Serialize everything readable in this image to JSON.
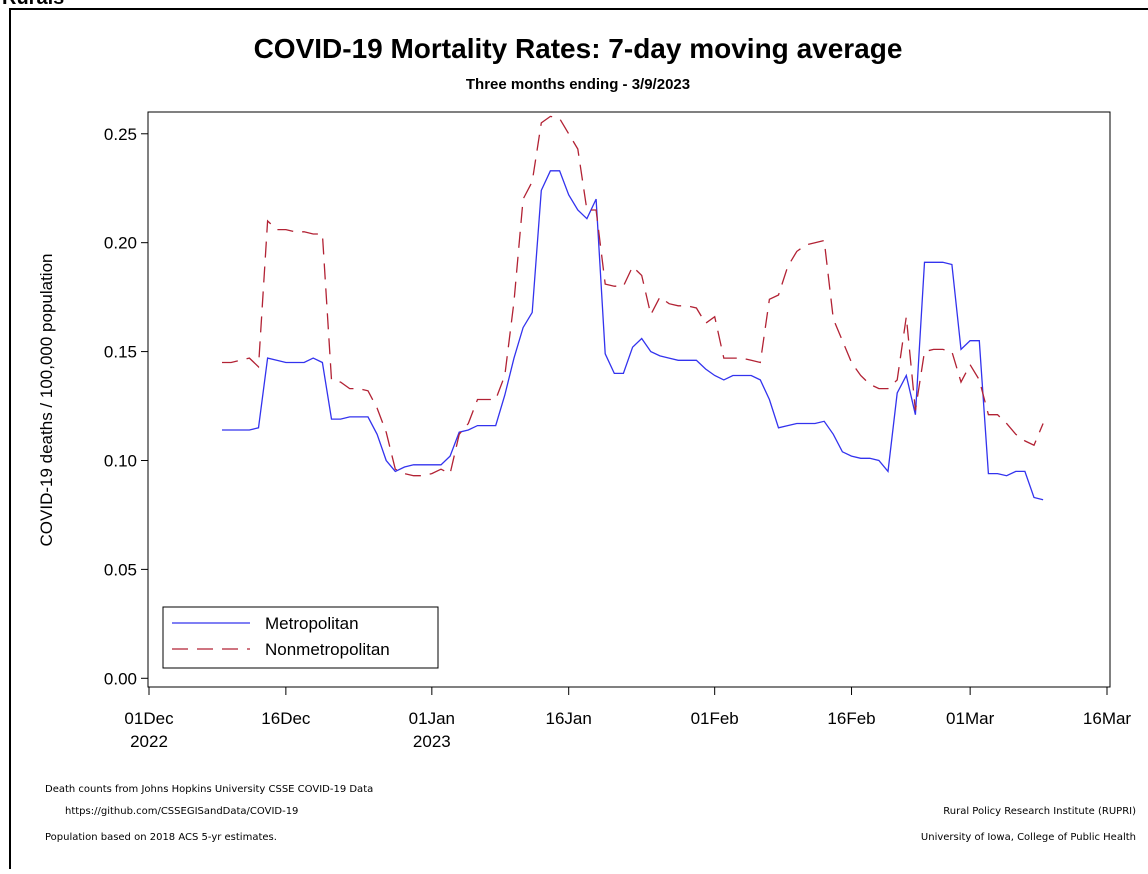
{
  "header": "Rurals",
  "chart_data": {
    "type": "line",
    "title": "COVID-19 Mortality Rates: 7-day moving average",
    "subtitle": "Three months ending - 3/9/2023",
    "ylabel": "COVID-19 deaths / 100,000 population",
    "x": [
      "2022-12-09",
      "2022-12-10",
      "2022-12-11",
      "2022-12-12",
      "2022-12-13",
      "2022-12-14",
      "2022-12-15",
      "2022-12-16",
      "2022-12-17",
      "2022-12-18",
      "2022-12-19",
      "2022-12-20",
      "2022-12-21",
      "2022-12-22",
      "2022-12-23",
      "2022-12-24",
      "2022-12-25",
      "2022-12-26",
      "2022-12-27",
      "2022-12-28",
      "2022-12-29",
      "2022-12-30",
      "2022-12-31",
      "2023-01-01",
      "2023-01-02",
      "2023-01-03",
      "2023-01-04",
      "2023-01-05",
      "2023-01-06",
      "2023-01-07",
      "2023-01-08",
      "2023-01-09",
      "2023-01-10",
      "2023-01-11",
      "2023-01-12",
      "2023-01-13",
      "2023-01-14",
      "2023-01-15",
      "2023-01-16",
      "2023-01-17",
      "2023-01-18",
      "2023-01-19",
      "2023-01-20",
      "2023-01-21",
      "2023-01-22",
      "2023-01-23",
      "2023-01-24",
      "2023-01-25",
      "2023-01-26",
      "2023-01-27",
      "2023-01-28",
      "2023-01-29",
      "2023-01-30",
      "2023-01-31",
      "2023-02-01",
      "2023-02-02",
      "2023-02-03",
      "2023-02-04",
      "2023-02-05",
      "2023-02-06",
      "2023-02-07",
      "2023-02-08",
      "2023-02-09",
      "2023-02-10",
      "2023-02-11",
      "2023-02-12",
      "2023-02-13",
      "2023-02-14",
      "2023-02-15",
      "2023-02-16",
      "2023-02-17",
      "2023-02-18",
      "2023-02-19",
      "2023-02-20",
      "2023-02-21",
      "2023-02-22",
      "2023-02-23",
      "2023-02-24",
      "2023-02-25",
      "2023-02-26",
      "2023-02-27",
      "2023-02-28",
      "2023-03-01",
      "2023-03-02",
      "2023-03-03",
      "2023-03-04",
      "2023-03-05",
      "2023-03-06",
      "2023-03-07",
      "2023-03-08",
      "2023-03-09"
    ],
    "series": [
      {
        "name": "Metropolitan",
        "color": "#3333ee",
        "dash": "solid",
        "values": [
          0.114,
          0.114,
          0.114,
          0.114,
          0.115,
          0.147,
          0.146,
          0.145,
          0.145,
          0.145,
          0.147,
          0.145,
          0.119,
          0.119,
          0.12,
          0.12,
          0.12,
          0.112,
          0.1,
          0.095,
          0.097,
          0.098,
          0.098,
          0.098,
          0.098,
          0.102,
          0.113,
          0.114,
          0.116,
          0.116,
          0.116,
          0.13,
          0.147,
          0.161,
          0.168,
          0.224,
          0.233,
          0.233,
          0.222,
          0.215,
          0.211,
          0.22,
          0.149,
          0.14,
          0.14,
          0.152,
          0.156,
          0.15,
          0.148,
          0.147,
          0.146,
          0.146,
          0.146,
          0.142,
          0.139,
          0.137,
          0.139,
          0.139,
          0.139,
          0.137,
          0.128,
          0.115,
          0.116,
          0.117,
          0.117,
          0.117,
          0.118,
          0.112,
          0.104,
          0.102,
          0.101,
          0.101,
          0.1,
          0.095,
          0.131,
          0.139,
          0.121,
          0.191,
          0.191,
          0.191,
          0.19,
          0.151,
          0.155,
          0.155,
          0.094,
          0.094,
          0.093,
          0.095,
          0.095,
          0.083,
          0.082
        ]
      },
      {
        "name": "Nonmetropolitan",
        "color": "#b22234",
        "dash": "dashed",
        "values": [
          0.145,
          0.145,
          0.146,
          0.147,
          0.143,
          0.21,
          0.206,
          0.206,
          0.205,
          0.205,
          0.204,
          0.204,
          0.137,
          0.136,
          0.133,
          0.133,
          0.132,
          0.124,
          0.113,
          0.096,
          0.094,
          0.093,
          0.093,
          0.094,
          0.096,
          0.094,
          0.112,
          0.117,
          0.128,
          0.128,
          0.128,
          0.139,
          0.173,
          0.22,
          0.228,
          0.255,
          0.258,
          0.257,
          0.25,
          0.243,
          0.215,
          0.215,
          0.181,
          0.18,
          0.18,
          0.189,
          0.185,
          0.167,
          0.175,
          0.172,
          0.171,
          0.171,
          0.17,
          0.163,
          0.166,
          0.147,
          0.147,
          0.147,
          0.146,
          0.145,
          0.174,
          0.176,
          0.189,
          0.196,
          0.199,
          0.2,
          0.201,
          0.165,
          0.155,
          0.145,
          0.139,
          0.135,
          0.133,
          0.133,
          0.137,
          0.166,
          0.123,
          0.15,
          0.151,
          0.151,
          0.15,
          0.136,
          0.144,
          0.137,
          0.121,
          0.121,
          0.117,
          0.112,
          0.109,
          0.107,
          0.117
        ]
      }
    ],
    "xlim": [
      "2022-12-01",
      "2023-03-16"
    ],
    "xticks": [
      {
        "value": "2022-12-01",
        "label": "01Dec"
      },
      {
        "value": "2022-12-16",
        "label": "16Dec"
      },
      {
        "value": "2023-01-01",
        "label": "01Jan"
      },
      {
        "value": "2023-01-16",
        "label": "16Jan"
      },
      {
        "value": "2023-02-01",
        "label": "01Feb"
      },
      {
        "value": "2023-02-16",
        "label": "16Feb"
      },
      {
        "value": "2023-03-01",
        "label": "01Mar"
      },
      {
        "value": "2023-03-16",
        "label": "16Mar"
      }
    ],
    "xtick_years": [
      {
        "value": "2022-12-01",
        "label": "2022"
      },
      {
        "value": "2023-01-01",
        "label": "2023"
      }
    ],
    "ylim": [
      -0.004,
      0.26
    ],
    "yticks": [
      {
        "value": 0,
        "label": "0.00"
      },
      {
        "value": 0.05,
        "label": "0.05"
      },
      {
        "value": 0.1,
        "label": "0.10"
      },
      {
        "value": 0.15,
        "label": "0.15"
      },
      {
        "value": 0.2,
        "label": "0.20"
      },
      {
        "value": 0.25,
        "label": "0.25"
      }
    ],
    "legend": "bottom-left",
    "footnotes_left": [
      "Death counts from Johns Hopkins University CSSE COVID-19 Data",
      "https://github.com/CSSEGISandData/COVID-19",
      "Population based on 2018 ACS 5-yr estimates."
    ],
    "footnotes_right": [
      "Rural Policy Research Institute (RUPRI)",
      "University of Iowa, College of Public Health"
    ]
  }
}
